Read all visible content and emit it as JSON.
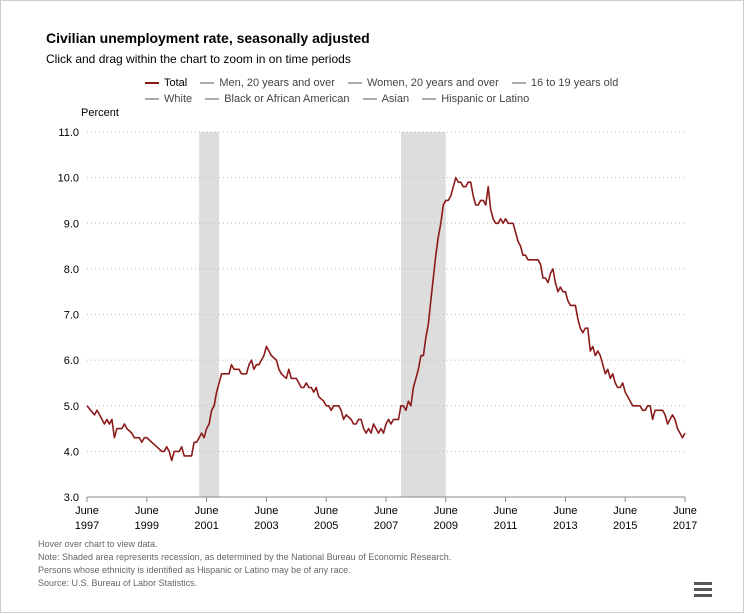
{
  "header": {
    "title": "Civilian unemployment rate, seasonally adjusted",
    "subtitle": "Click and drag within the chart to zoom in on time periods"
  },
  "legend": {
    "row1": [
      {
        "label": "Total",
        "color": "#8b1a1a"
      },
      {
        "label": "Men, 20 years and over",
        "color": "#aaaaaa"
      },
      {
        "label": "Women, 20 years and over",
        "color": "#aaaaaa"
      },
      {
        "label": "16 to 19 years old",
        "color": "#aaaaaa"
      }
    ],
    "row2": [
      {
        "label": "White",
        "color": "#aaaaaa"
      },
      {
        "label": "Black or African American",
        "color": "#aaaaaa"
      },
      {
        "label": "Asian",
        "color": "#aaaaaa"
      },
      {
        "label": "Hispanic or Latino",
        "color": "#aaaaaa"
      }
    ]
  },
  "notes": {
    "hover": "Hover over chart to view data.",
    "note1": "Note: Shaded area represents recession, as determined by the National Bureau of Economic Research.",
    "note2": "Persons whose ethnicity is identified as Hispanic or Latino may be of any race.",
    "source": "Source: U.S. Bureau of Labor Statistics."
  },
  "icons": {
    "menu": "hamburger-menu-icon"
  },
  "chart_data": {
    "type": "line",
    "ylabel": "Percent",
    "ylim": [
      3.0,
      11.0
    ],
    "yticks": [
      "3.0",
      "4.0",
      "5.0",
      "6.0",
      "7.0",
      "8.0",
      "9.0",
      "10.0",
      "11.0"
    ],
    "xlim": [
      "1997-06",
      "2017-06"
    ],
    "xticks": [
      {
        "month": "June",
        "year": "1997",
        "date": "1997-06"
      },
      {
        "month": "June",
        "year": "1999",
        "date": "1999-06"
      },
      {
        "month": "June",
        "year": "2001",
        "date": "2001-06"
      },
      {
        "month": "June",
        "year": "2003",
        "date": "2003-06"
      },
      {
        "month": "June",
        "year": "2005",
        "date": "2005-06"
      },
      {
        "month": "June",
        "year": "2007",
        "date": "2007-06"
      },
      {
        "month": "June",
        "year": "2009",
        "date": "2009-06"
      },
      {
        "month": "June",
        "year": "2011",
        "date": "2011-06"
      },
      {
        "month": "June",
        "year": "2013",
        "date": "2013-06"
      },
      {
        "month": "June",
        "year": "2015",
        "date": "2015-06"
      },
      {
        "month": "June",
        "year": "2017",
        "date": "2017-06"
      }
    ],
    "grid": "horizontal dotted",
    "recessions": [
      {
        "start": "2001-03",
        "end": "2001-11"
      },
      {
        "start": "2007-12",
        "end": "2009-06"
      }
    ],
    "series": [
      {
        "name": "Total",
        "color": "#8b1a1a",
        "points": [
          [
            "1997-06",
            5.0
          ],
          [
            "1997-09",
            4.8
          ],
          [
            "1997-10",
            4.9
          ],
          [
            "1997-12",
            4.7
          ],
          [
            "1998-01",
            4.6
          ],
          [
            "1998-02",
            4.7
          ],
          [
            "1998-03",
            4.6
          ],
          [
            "1998-04",
            4.7
          ],
          [
            "1998-05",
            4.3
          ],
          [
            "1998-06",
            4.5
          ],
          [
            "1998-08",
            4.5
          ],
          [
            "1998-09",
            4.6
          ],
          [
            "1998-10",
            4.5
          ],
          [
            "1998-12",
            4.4
          ],
          [
            "1999-01",
            4.3
          ],
          [
            "1999-03",
            4.3
          ],
          [
            "1999-04",
            4.2
          ],
          [
            "1999-05",
            4.3
          ],
          [
            "1999-06",
            4.3
          ],
          [
            "1999-08",
            4.2
          ],
          [
            "1999-10",
            4.1
          ],
          [
            "1999-12",
            4.0
          ],
          [
            "2000-01",
            4.0
          ],
          [
            "2000-02",
            4.1
          ],
          [
            "2000-03",
            4.0
          ],
          [
            "2000-04",
            3.8
          ],
          [
            "2000-05",
            4.0
          ],
          [
            "2000-07",
            4.0
          ],
          [
            "2000-08",
            4.1
          ],
          [
            "2000-09",
            3.9
          ],
          [
            "2000-12",
            3.9
          ],
          [
            "2001-01",
            4.2
          ],
          [
            "2001-02",
            4.2
          ],
          [
            "2001-03",
            4.3
          ],
          [
            "2001-04",
            4.4
          ],
          [
            "2001-05",
            4.3
          ],
          [
            "2001-06",
            4.5
          ],
          [
            "2001-07",
            4.6
          ],
          [
            "2001-08",
            4.9
          ],
          [
            "2001-09",
            5.0
          ],
          [
            "2001-10",
            5.3
          ],
          [
            "2001-11",
            5.5
          ],
          [
            "2001-12",
            5.7
          ],
          [
            "2002-03",
            5.7
          ],
          [
            "2002-04",
            5.9
          ],
          [
            "2002-05",
            5.8
          ],
          [
            "2002-07",
            5.8
          ],
          [
            "2002-08",
            5.7
          ],
          [
            "2002-10",
            5.7
          ],
          [
            "2002-11",
            5.9
          ],
          [
            "2002-12",
            6.0
          ],
          [
            "2003-01",
            5.8
          ],
          [
            "2003-02",
            5.9
          ],
          [
            "2003-03",
            5.9
          ],
          [
            "2003-04",
            6.0
          ],
          [
            "2003-05",
            6.1
          ],
          [
            "2003-06",
            6.3
          ],
          [
            "2003-07",
            6.2
          ],
          [
            "2003-08",
            6.1
          ],
          [
            "2003-10",
            6.0
          ],
          [
            "2003-11",
            5.8
          ],
          [
            "2003-12",
            5.7
          ],
          [
            "2004-02",
            5.6
          ],
          [
            "2004-03",
            5.8
          ],
          [
            "2004-04",
            5.6
          ],
          [
            "2004-06",
            5.6
          ],
          [
            "2004-07",
            5.5
          ],
          [
            "2004-08",
            5.4
          ],
          [
            "2004-09",
            5.4
          ],
          [
            "2004-10",
            5.5
          ],
          [
            "2004-11",
            5.4
          ],
          [
            "2004-12",
            5.4
          ],
          [
            "2005-01",
            5.3
          ],
          [
            "2005-02",
            5.4
          ],
          [
            "2005-03",
            5.2
          ],
          [
            "2005-05",
            5.1
          ],
          [
            "2005-06",
            5.0
          ],
          [
            "2005-07",
            5.0
          ],
          [
            "2005-08",
            4.9
          ],
          [
            "2005-09",
            5.0
          ],
          [
            "2005-10",
            5.0
          ],
          [
            "2005-11",
            5.0
          ],
          [
            "2005-12",
            4.9
          ],
          [
            "2006-01",
            4.7
          ],
          [
            "2006-02",
            4.8
          ],
          [
            "2006-04",
            4.7
          ],
          [
            "2006-05",
            4.6
          ],
          [
            "2006-06",
            4.6
          ],
          [
            "2006-07",
            4.7
          ],
          [
            "2006-08",
            4.7
          ],
          [
            "2006-09",
            4.5
          ],
          [
            "2006-10",
            4.4
          ],
          [
            "2006-11",
            4.5
          ],
          [
            "2006-12",
            4.4
          ],
          [
            "2007-01",
            4.6
          ],
          [
            "2007-02",
            4.5
          ],
          [
            "2007-03",
            4.4
          ],
          [
            "2007-04",
            4.5
          ],
          [
            "2007-05",
            4.4
          ],
          [
            "2007-06",
            4.6
          ],
          [
            "2007-07",
            4.7
          ],
          [
            "2007-08",
            4.6
          ],
          [
            "2007-09",
            4.7
          ],
          [
            "2007-10",
            4.7
          ],
          [
            "2007-11",
            4.7
          ],
          [
            "2007-12",
            5.0
          ],
          [
            "2008-01",
            5.0
          ],
          [
            "2008-02",
            4.9
          ],
          [
            "2008-03",
            5.1
          ],
          [
            "2008-04",
            5.0
          ],
          [
            "2008-05",
            5.4
          ],
          [
            "2008-06",
            5.6
          ],
          [
            "2008-07",
            5.8
          ],
          [
            "2008-08",
            6.1
          ],
          [
            "2008-09",
            6.1
          ],
          [
            "2008-10",
            6.5
          ],
          [
            "2008-11",
            6.8
          ],
          [
            "2008-12",
            7.3
          ],
          [
            "2009-01",
            7.8
          ],
          [
            "2009-02",
            8.3
          ],
          [
            "2009-03",
            8.7
          ],
          [
            "2009-04",
            9.0
          ],
          [
            "2009-05",
            9.4
          ],
          [
            "2009-06",
            9.5
          ],
          [
            "2009-07",
            9.5
          ],
          [
            "2009-08",
            9.6
          ],
          [
            "2009-09",
            9.8
          ],
          [
            "2009-10",
            10.0
          ],
          [
            "2009-11",
            9.9
          ],
          [
            "2009-12",
            9.9
          ],
          [
            "2010-01",
            9.8
          ],
          [
            "2010-02",
            9.8
          ],
          [
            "2010-03",
            9.9
          ],
          [
            "2010-04",
            9.9
          ],
          [
            "2010-05",
            9.6
          ],
          [
            "2010-06",
            9.4
          ],
          [
            "2010-07",
            9.4
          ],
          [
            "2010-08",
            9.5
          ],
          [
            "2010-09",
            9.5
          ],
          [
            "2010-10",
            9.4
          ],
          [
            "2010-11",
            9.8
          ],
          [
            "2010-12",
            9.3
          ],
          [
            "2011-01",
            9.1
          ],
          [
            "2011-02",
            9.0
          ],
          [
            "2011-03",
            9.0
          ],
          [
            "2011-04",
            9.1
          ],
          [
            "2011-05",
            9.0
          ],
          [
            "2011-06",
            9.1
          ],
          [
            "2011-07",
            9.0
          ],
          [
            "2011-08",
            9.0
          ],
          [
            "2011-09",
            9.0
          ],
          [
            "2011-10",
            8.8
          ],
          [
            "2011-11",
            8.6
          ],
          [
            "2011-12",
            8.5
          ],
          [
            "2012-01",
            8.3
          ],
          [
            "2012-02",
            8.3
          ],
          [
            "2012-03",
            8.2
          ],
          [
            "2012-04",
            8.2
          ],
          [
            "2012-05",
            8.2
          ],
          [
            "2012-06",
            8.2
          ],
          [
            "2012-07",
            8.2
          ],
          [
            "2012-08",
            8.1
          ],
          [
            "2012-09",
            7.8
          ],
          [
            "2012-10",
            7.8
          ],
          [
            "2012-11",
            7.7
          ],
          [
            "2012-12",
            7.9
          ],
          [
            "2013-01",
            8.0
          ],
          [
            "2013-02",
            7.7
          ],
          [
            "2013-03",
            7.5
          ],
          [
            "2013-04",
            7.6
          ],
          [
            "2013-05",
            7.5
          ],
          [
            "2013-06",
            7.5
          ],
          [
            "2013-07",
            7.3
          ],
          [
            "2013-08",
            7.2
          ],
          [
            "2013-09",
            7.2
          ],
          [
            "2013-10",
            7.2
          ],
          [
            "2013-11",
            6.9
          ],
          [
            "2013-12",
            6.7
          ],
          [
            "2014-01",
            6.6
          ],
          [
            "2014-02",
            6.7
          ],
          [
            "2014-03",
            6.7
          ],
          [
            "2014-04",
            6.2
          ],
          [
            "2014-05",
            6.3
          ],
          [
            "2014-06",
            6.1
          ],
          [
            "2014-07",
            6.2
          ],
          [
            "2014-08",
            6.1
          ],
          [
            "2014-09",
            5.9
          ],
          [
            "2014-10",
            5.7
          ],
          [
            "2014-11",
            5.8
          ],
          [
            "2014-12",
            5.6
          ],
          [
            "2015-01",
            5.7
          ],
          [
            "2015-02",
            5.5
          ],
          [
            "2015-03",
            5.4
          ],
          [
            "2015-04",
            5.4
          ],
          [
            "2015-05",
            5.5
          ],
          [
            "2015-06",
            5.3
          ],
          [
            "2015-07",
            5.2
          ],
          [
            "2015-08",
            5.1
          ],
          [
            "2015-09",
            5.0
          ],
          [
            "2015-10",
            5.0
          ],
          [
            "2015-11",
            5.0
          ],
          [
            "2015-12",
            5.0
          ],
          [
            "2016-01",
            4.9
          ],
          [
            "2016-02",
            4.9
          ],
          [
            "2016-03",
            5.0
          ],
          [
            "2016-04",
            5.0
          ],
          [
            "2016-05",
            4.7
          ],
          [
            "2016-06",
            4.9
          ],
          [
            "2016-07",
            4.9
          ],
          [
            "2016-08",
            4.9
          ],
          [
            "2016-09",
            4.9
          ],
          [
            "2016-10",
            4.8
          ],
          [
            "2016-11",
            4.6
          ],
          [
            "2016-12",
            4.7
          ],
          [
            "2017-01",
            4.8
          ],
          [
            "2017-02",
            4.7
          ],
          [
            "2017-03",
            4.5
          ],
          [
            "2017-04",
            4.4
          ],
          [
            "2017-05",
            4.3
          ],
          [
            "2017-06",
            4.4
          ]
        ]
      }
    ]
  }
}
